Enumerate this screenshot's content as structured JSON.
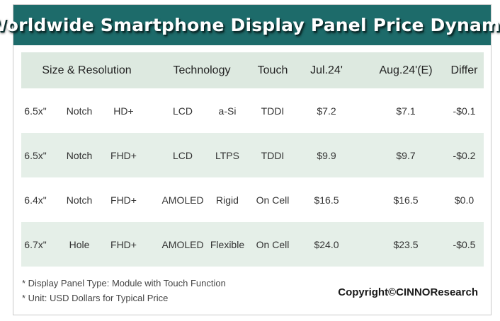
{
  "title": "Worldwide Smartphone Display Panel Price Dynamic",
  "header": {
    "size_resolution": "Size & Resolution",
    "technology": "Technology",
    "touch": "Touch",
    "jul": "Jul.24'",
    "aug": "Aug.24'(E)",
    "differ": "Differ"
  },
  "rows": [
    {
      "size": "6.5x\"",
      "form": "Notch",
      "res": "HD+",
      "tech": "LCD",
      "sub": "a-Si",
      "touch": "TDDI",
      "jul": "$7.2",
      "aug": "$7.1",
      "differ": "-$0.1"
    },
    {
      "size": "6.5x\"",
      "form": "Notch",
      "res": "FHD+",
      "tech": "LCD",
      "sub": "LTPS",
      "touch": "TDDI",
      "jul": "$9.9",
      "aug": "$9.7",
      "differ": "-$0.2"
    },
    {
      "size": "6.4x\"",
      "form": "Notch",
      "res": "FHD+",
      "tech": "AMOLED",
      "sub": "Rigid",
      "touch": "On Cell",
      "jul": "$16.5",
      "aug": "$16.5",
      "differ": "$0.0"
    },
    {
      "size": "6.7x\"",
      "form": "Hole",
      "res": "FHD+",
      "tech": "AMOLED",
      "sub": "Flexible",
      "touch": "On Cell",
      "jul": "$24.0",
      "aug": "$23.5",
      "differ": "-$0.5"
    }
  ],
  "footnotes": {
    "panel_type": "* Display Panel Type:  Module with Touch Function",
    "unit": "* Unit:  USD Dollars for Typical Price"
  },
  "copyright": "Copyright©CINNOResearch",
  "colors": {
    "title_bg": "#1d6b6a",
    "header_bg": "#dde9e0",
    "shaded_row_bg": "#e5efe8"
  }
}
